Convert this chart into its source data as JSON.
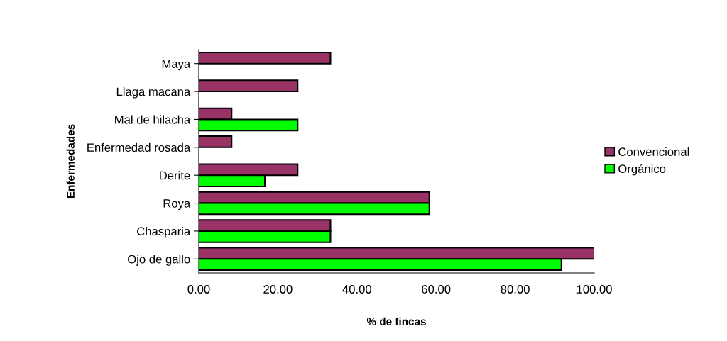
{
  "chart_data": {
    "type": "bar",
    "orientation": "horizontal",
    "xlabel": "% de fincas",
    "ylabel": "Enfermedades",
    "categories": [
      "Maya",
      "Llaga macana",
      "Mal de hilacha",
      "Enfermedad rosada",
      "Derite",
      "Roya",
      "Chasparia",
      "Ojo de gallo"
    ],
    "series": [
      {
        "name": "Convencional",
        "color": "#993366",
        "values": [
          33.3,
          25,
          8.3,
          8.3,
          25,
          58.3,
          33.3,
          100
        ]
      },
      {
        "name": "Orgánico",
        "color": "#00ff00",
        "values": [
          null,
          null,
          25,
          null,
          16.7,
          58.3,
          33.3,
          91.7
        ]
      }
    ],
    "xlim": [
      0,
      100
    ],
    "xticks": [
      {
        "value": 0,
        "label": "0.00"
      },
      {
        "value": 20,
        "label": "20.00"
      },
      {
        "value": 40,
        "label": "40.00"
      },
      {
        "value": 60,
        "label": "60.00"
      },
      {
        "value": 80,
        "label": "80.00"
      },
      {
        "value": 100,
        "label": "100.00"
      }
    ],
    "grid": false,
    "legend": "right"
  }
}
